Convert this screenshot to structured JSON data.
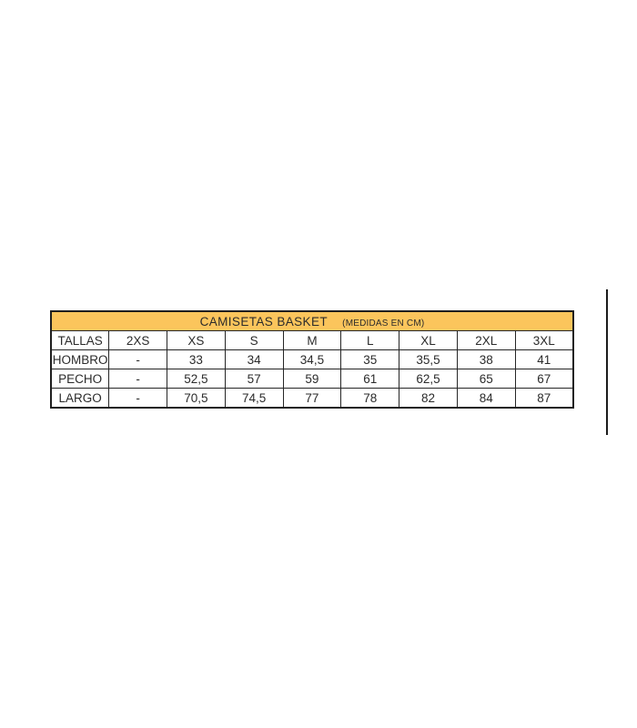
{
  "table": {
    "title": "CAMISETAS BASKET",
    "subtitle": "(MEDIDAS EN CM)",
    "header_bg_color": "#FBC55C",
    "border_color": "#1f1f1f",
    "text_color": "#2b2b2b",
    "columns": [
      "TALLAS",
      "2XS",
      "XS",
      "S",
      "M",
      "L",
      "XL",
      "2XL",
      "3XL"
    ],
    "rows": [
      {
        "label": "HOMBRO",
        "values": [
          "-",
          "33",
          "34",
          "34,5",
          "35",
          "35,5",
          "38",
          "41"
        ]
      },
      {
        "label": "PECHO",
        "values": [
          "-",
          "52,5",
          "57",
          "59",
          "61",
          "62,5",
          "65",
          "67"
        ]
      },
      {
        "label": "LARGO",
        "values": [
          "-",
          "70,5",
          "74,5",
          "77",
          "78",
          "82",
          "84",
          "87"
        ]
      }
    ]
  }
}
